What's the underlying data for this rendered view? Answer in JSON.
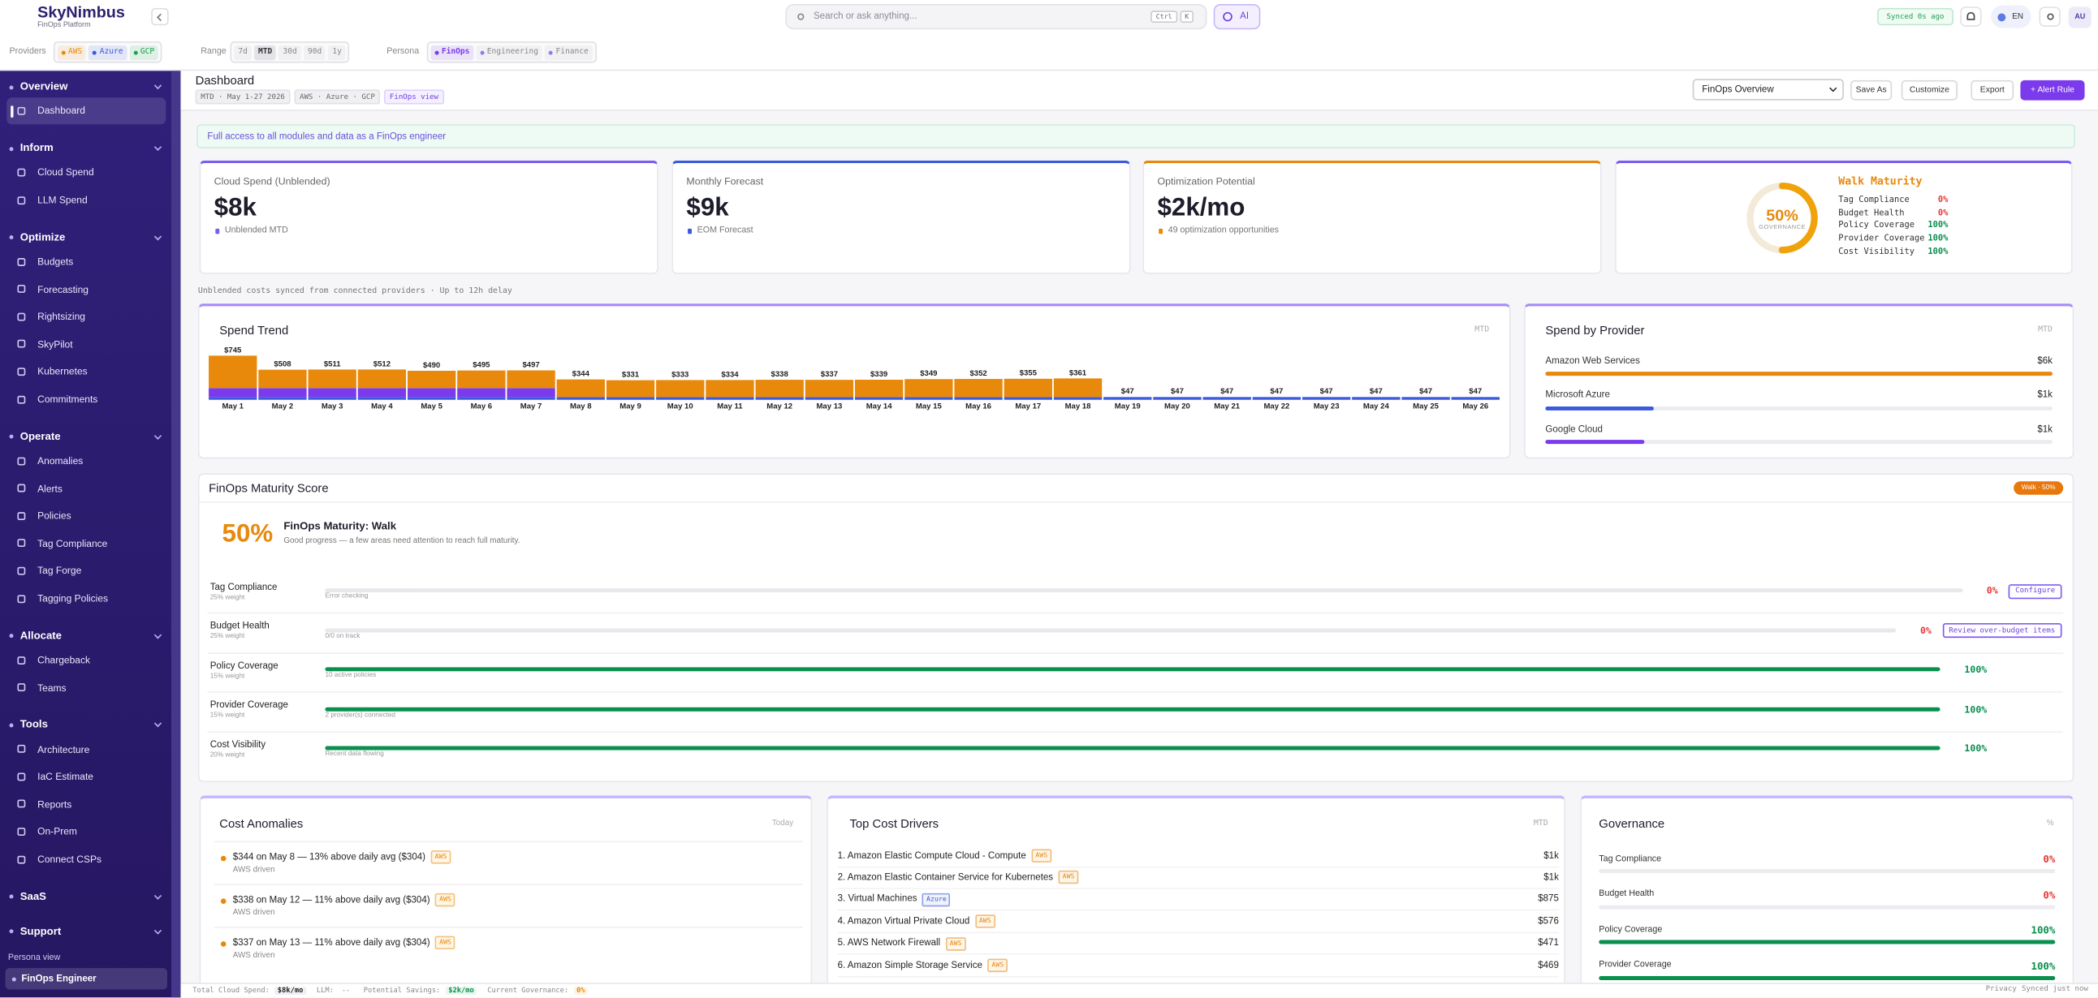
{
  "header": {
    "brand": "SkyNimbus",
    "subtitle": "FinOps Platform",
    "search": "Search or ask anything...",
    "shortcut": [
      "Ctrl",
      "K"
    ],
    "ai": "AI",
    "sync": "Synced 0s ago",
    "language": "EN",
    "user": "AU"
  },
  "filters": [
    {
      "label": "Providers",
      "options": [
        {
          "text": "AWS",
          "color": "#e8890c"
        },
        {
          "text": "Azure",
          "color": "#3b5bdb"
        },
        {
          "text": "GCP",
          "color": "#16a34a"
        }
      ]
    },
    {
      "label": "Range",
      "options": [
        {
          "text": "7d"
        },
        {
          "text": "MTD",
          "selected": true
        },
        {
          "text": "30d"
        },
        {
          "text": "90d"
        },
        {
          "text": "1y"
        }
      ]
    },
    {
      "label": "Persona",
      "options": [
        {
          "text": "FinOps",
          "color": "#7c3aed",
          "selected": true
        },
        {
          "text": "Engineering",
          "color": "#8b7cf6"
        },
        {
          "text": "Finance",
          "color": "#8b7cf6"
        }
      ]
    }
  ],
  "nav": {
    "sections": [
      {
        "title": "Overview",
        "items": [
          "Dashboard"
        ],
        "selected_item": 0
      },
      {
        "title": "Inform",
        "items": [
          "Cloud Spend",
          "LLM Spend"
        ]
      },
      {
        "title": "Optimize",
        "items": [
          "Budgets",
          "Forecasting",
          "Rightsizing",
          "SkyPilot",
          "Kubernetes",
          "Commitments"
        ]
      },
      {
        "title": "Operate",
        "items": [
          "Anomalies",
          "Alerts",
          "Policies",
          "Tag Compliance",
          "Tag Forge",
          "Tagging Policies"
        ]
      },
      {
        "title": "Allocate",
        "items": [
          "Chargeback",
          "Teams"
        ]
      },
      {
        "title": "Tools",
        "items": [
          "Architecture",
          "IaC Estimate",
          "Reports",
          "On-Prem",
          "Connect CSPs"
        ]
      },
      {
        "title": "SaaS",
        "items": []
      },
      {
        "title": "Support",
        "items": []
      }
    ],
    "persona_label": "Persona view",
    "persona": "FinOps Engineer"
  },
  "page": {
    "title": "Dashboard",
    "context": [
      "MTD · May 1-27 2026",
      "AWS · Azure · GCP",
      "FinOps view"
    ],
    "view": "FinOps Overview",
    "buttons": [
      "Save As",
      "Customize",
      "Export",
      "+ Alert Rule"
    ],
    "banner": "Full access to all modules and data as a FinOps engineer",
    "note": "Unblended costs synced from connected providers · Up to 12h delay"
  },
  "kpis": [
    {
      "label": "Cloud Spend (Unblended)",
      "value": "$8k",
      "note": "Unblended MTD"
    },
    {
      "label": "Monthly Forecast",
      "value": "$9k",
      "note": "EOM Forecast"
    },
    {
      "label": "Optimization Potential",
      "value": "$2k/mo",
      "note": "49 optimization opportunities"
    }
  ],
  "maturity_card": {
    "ring": {
      "value": 50,
      "label": "50%",
      "caption": "GOVERNANCE",
      "lim": [
        0,
        100
      ]
    },
    "title": "Walk Maturity",
    "rows": [
      {
        "name": "Tag Compliance",
        "value": "0%",
        "color": "#e53935"
      },
      {
        "name": "Budget Health",
        "value": "0%",
        "color": "#e53935"
      },
      {
        "name": "Policy Coverage",
        "value": "100%",
        "color": "#0a8f4e"
      },
      {
        "name": "Provider Coverage",
        "value": "100%",
        "color": "#0a8f4e"
      },
      {
        "name": "Cost Visibility",
        "value": "100%",
        "color": "#0a8f4e"
      }
    ]
  },
  "chart_data": [
    {
      "type": "bar",
      "stacked": true,
      "title": "Spend Trend",
      "subtitle": "MTD",
      "categories": [
        "May 1",
        "May 2",
        "May 3",
        "May 4",
        "May 5",
        "May 6",
        "May 7",
        "May 8",
        "May 9",
        "May 10",
        "May 11",
        "May 12",
        "May 13",
        "May 14",
        "May 15",
        "May 16",
        "May 17",
        "May 18",
        "May 19",
        "May 20",
        "May 21",
        "May 22",
        "May 23",
        "May 24",
        "May 25",
        "May 26"
      ],
      "series": [
        {
          "color": "#3b5bdb",
          "values": [
            47,
            47,
            47,
            47,
            47,
            47,
            47,
            47,
            47,
            47,
            47,
            47,
            47,
            47,
            47,
            47,
            47,
            47,
            47,
            47,
            47,
            47,
            47,
            47,
            47,
            47
          ]
        },
        {
          "color": "#7c3aed",
          "values": [
            150,
            150,
            150,
            150,
            150,
            150,
            150,
            0,
            0,
            0,
            0,
            0,
            0,
            0,
            0,
            0,
            0,
            0,
            0,
            0,
            0,
            0,
            0,
            0,
            0,
            0
          ]
        },
        {
          "color": "#e8890c",
          "values": [
            548,
            311,
            314,
            315,
            293,
            298,
            300,
            297,
            284,
            286,
            287,
            291,
            290,
            292,
            302,
            305,
            308,
            314,
            0,
            0,
            0,
            0,
            0,
            0,
            0,
            0
          ]
        }
      ],
      "totals": [
        745,
        508,
        511,
        512,
        490,
        495,
        497,
        344,
        331,
        333,
        334,
        338,
        337,
        339,
        349,
        352,
        355,
        361,
        47,
        47,
        47,
        47,
        47,
        47,
        47,
        47
      ],
      "total_labels": [
        "$745",
        "$508",
        "$511",
        "$512",
        "$490",
        "$495",
        "$497",
        "$344",
        "$331",
        "$333",
        "$334",
        "$338",
        "$337",
        "$339",
        "$349",
        "$352",
        "$355",
        "$361",
        "$47",
        "$47",
        "$47",
        "$47",
        "$47",
        "$47",
        "$47",
        "$47"
      ]
    },
    {
      "type": "hbar",
      "title": "Spend by Provider",
      "subtitle": "MTD",
      "categories": [
        "Amazon Web Services",
        "Microsoft Azure",
        "Google Cloud"
      ],
      "values": [
        5.6,
        1.2,
        1.1
      ],
      "value_labels": [
        "$6k",
        "$1k",
        "$1k"
      ],
      "colors": [
        "#e8890c",
        "#3b5bdb",
        "#7c3aed"
      ]
    }
  ],
  "maturity": {
    "title": "FinOps Maturity Score",
    "badge": "Walk · 50%",
    "score": "50%",
    "heading": "FinOps Maturity: Walk",
    "summary": "Good progress — a few areas need attention to reach full maturity.",
    "xlim": [
      0,
      100
    ],
    "rows": [
      {
        "name": "Tag Compliance",
        "weight": "25% weight",
        "note": "Error checking",
        "value": 0,
        "label": "0%",
        "color": "#e53935",
        "action": "Configure"
      },
      {
        "name": "Budget Health",
        "weight": "25% weight",
        "note": "0/0 on track",
        "value": 0,
        "label": "0%",
        "color": "#e53935",
        "action": "Review over-budget items"
      },
      {
        "name": "Policy Coverage",
        "weight": "15% weight",
        "note": "10 active policies",
        "value": 100,
        "label": "100%",
        "color": "#0a8f4e"
      },
      {
        "name": "Provider Coverage",
        "weight": "15% weight",
        "note": "2 provider(s) connected",
        "value": 100,
        "label": "100%",
        "color": "#0a8f4e"
      },
      {
        "name": "Cost Visibility",
        "weight": "20% weight",
        "note": "Recent data flowing",
        "value": 100,
        "label": "100%",
        "color": "#0a8f4e"
      }
    ]
  },
  "anomalies": {
    "title": "Cost Anomalies",
    "subtitle": "Today",
    "items": [
      {
        "text": "$344 on May 8 — 13% above daily avg ($304)",
        "tag": "AWS",
        "source": "AWS driven"
      },
      {
        "text": "$338 on May 12 — 11% above daily avg ($304)",
        "tag": "AWS",
        "source": "AWS driven"
      },
      {
        "text": "$337 on May 13 — 11% above daily avg ($304)",
        "tag": "AWS",
        "source": "AWS driven"
      }
    ]
  },
  "drivers": {
    "title": "Top Cost Drivers",
    "subtitle": "MTD",
    "items": [
      {
        "name": "1. Amazon Elastic Compute Cloud - Compute",
        "tag": "AWS",
        "tag_color": "#e8890c",
        "cost": "$1k"
      },
      {
        "name": "2. Amazon Elastic Container Service for Kubernetes",
        "tag": "AWS",
        "tag_color": "#e8890c",
        "cost": "$1k"
      },
      {
        "name": "3. Virtual Machines",
        "tag": "Azure",
        "tag_color": "#3b5bdb",
        "cost": "$875"
      },
      {
        "name": "4. Amazon Virtual Private Cloud",
        "tag": "AWS",
        "tag_color": "#e8890c",
        "cost": "$576"
      },
      {
        "name": "5. AWS Network Firewall",
        "tag": "AWS",
        "tag_color": "#e8890c",
        "cost": "$471"
      },
      {
        "name": "6. Amazon Simple Storage Service",
        "tag": "AWS",
        "tag_color": "#e8890c",
        "cost": "$469"
      }
    ]
  },
  "governance": {
    "title": "Governance",
    "subtitle": "%",
    "xlim": [
      0,
      100
    ],
    "rows": [
      {
        "name": "Tag Compliance",
        "value": 0,
        "label": "0%",
        "color": "#e53935"
      },
      {
        "name": "Budget Health",
        "value": 0,
        "label": "0%",
        "color": "#e53935"
      },
      {
        "name": "Policy Coverage",
        "value": 100,
        "label": "100%",
        "color": "#0a8f4e"
      },
      {
        "name": "Provider Coverage",
        "value": 100,
        "label": "100%",
        "color": "#0a8f4e"
      }
    ]
  },
  "footer": {
    "items": [
      {
        "label": "Total Cloud Spend:",
        "value": "$8k/mo"
      },
      {
        "label": "LLM:",
        "value": "--"
      },
      {
        "label": "Potential Savings:",
        "value": "$2k/mo"
      },
      {
        "label": "Current Governance:",
        "value": "0%"
      }
    ],
    "right": [
      "Privacy",
      "Synced just now"
    ]
  }
}
